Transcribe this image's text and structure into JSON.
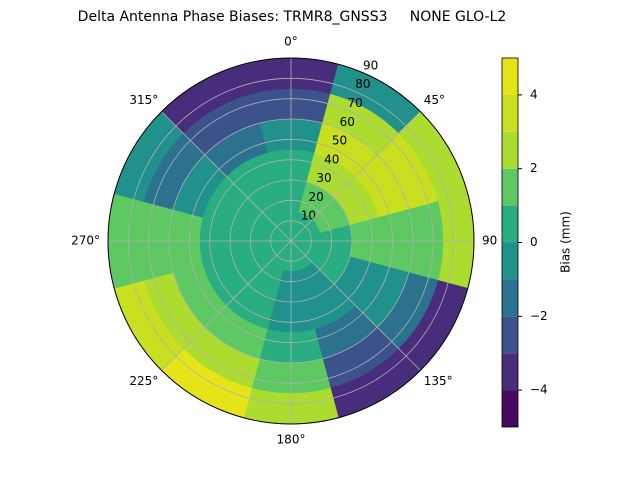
{
  "chart_data": {
    "type": "polar_contour",
    "title": "Delta Antenna Phase Biases: TRMR8_GNSS3     NONE GLO-L2",
    "colorbar_label": "Bias (mm)",
    "theta": [
      0,
      30,
      60,
      90,
      120,
      150,
      180,
      210,
      240,
      270,
      300,
      330
    ],
    "r_bins": [
      0,
      15,
      30,
      45,
      60,
      75,
      90
    ],
    "values": [
      [
        0,
        0.5,
        0.5,
        -1,
        -2.5,
        -3.5
      ],
      [
        0,
        1,
        2,
        3,
        2,
        -1
      ],
      [
        0,
        1,
        2,
        3.5,
        3,
        2
      ],
      [
        0,
        0.5,
        1,
        1.5,
        1.5,
        2.5
      ],
      [
        0,
        0,
        -0.5,
        -1,
        -2,
        -3.5
      ],
      [
        0,
        -0.5,
        -1,
        -1.5,
        -2.5,
        -4
      ],
      [
        0,
        -0.5,
        -0.5,
        0,
        1,
        2.5
      ],
      [
        0,
        0,
        0,
        1,
        2,
        4
      ],
      [
        0,
        0,
        0.5,
        1,
        2,
        3.5
      ],
      [
        0,
        0.5,
        0.5,
        1,
        1.5,
        1.5
      ],
      [
        0,
        0.5,
        0,
        -1,
        -2,
        -1
      ],
      [
        0,
        0.5,
        0,
        -1.5,
        -3,
        -3.5
      ]
    ],
    "levels": [
      -5,
      -4,
      -3,
      -2,
      -1,
      0,
      1,
      2,
      3,
      4,
      5
    ],
    "colors": [
      "#46085c",
      "#472d7b",
      "#3b528b",
      "#2c728e",
      "#21918c",
      "#28ae80",
      "#5ec962",
      "#addc30",
      "#c8e020",
      "#e5e419"
    ],
    "rlim": [
      0,
      90
    ],
    "rticks": [
      10,
      20,
      30,
      40,
      50,
      60,
      70,
      80,
      90
    ],
    "thetaticks": [
      {
        "value": 0,
        "label": "0°"
      },
      {
        "value": 45,
        "label": "45°"
      },
      {
        "value": 90,
        "label": "90"
      },
      {
        "value": 135,
        "label": "135°"
      },
      {
        "value": 180,
        "label": "180°"
      },
      {
        "value": 225,
        "label": "225°"
      },
      {
        "value": 270,
        "label": "270°"
      },
      {
        "value": 315,
        "label": "315°"
      }
    ],
    "cbar_lim": [
      -5,
      5
    ],
    "cbar_ticks": [
      {
        "value": -4,
        "label": "−4"
      },
      {
        "value": -2,
        "label": "−2"
      },
      0,
      2,
      4
    ],
    "grid": true
  }
}
